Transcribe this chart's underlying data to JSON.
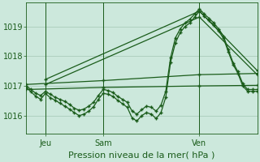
{
  "background_color": "#cce8dc",
  "grid_color": "#aaccbb",
  "line_color": "#1a5c1a",
  "xlabel": "Pression niveau de la mer( hPa )",
  "xlabel_fontsize": 8,
  "ylim": [
    1015.4,
    1019.8
  ],
  "yticks": [
    1016,
    1017,
    1018,
    1019
  ],
  "ytick_fontsize": 7,
  "xtick_labels": [
    "Jeu",
    "Sam",
    "Ven"
  ],
  "xtick_positions": [
    8,
    32,
    72
  ],
  "xlim": [
    0,
    96
  ],
  "series": [
    {
      "x": [
        0,
        2,
        4,
        6,
        8,
        10,
        12,
        14,
        16,
        18,
        20,
        22,
        24,
        26,
        28,
        30,
        32,
        34,
        36,
        38,
        40,
        42,
        44,
        46,
        48,
        50,
        52,
        54,
        56,
        58,
        60,
        62,
        64,
        66,
        68,
        70,
        72,
        74,
        76,
        78,
        80,
        82,
        84,
        86,
        88,
        90,
        92,
        94,
        96
      ],
      "y": [
        1016.95,
        1016.8,
        1016.65,
        1016.55,
        1016.75,
        1016.6,
        1016.52,
        1016.42,
        1016.32,
        1016.22,
        1016.1,
        1016.0,
        1016.05,
        1016.15,
        1016.3,
        1016.55,
        1016.75,
        1016.72,
        1016.65,
        1016.52,
        1016.4,
        1016.28,
        1015.92,
        1015.82,
        1016.0,
        1016.1,
        1016.05,
        1015.9,
        1016.1,
        1016.62,
        1017.8,
        1018.45,
        1018.8,
        1019.0,
        1019.12,
        1019.32,
        1019.52,
        1019.35,
        1019.2,
        1019.05,
        1018.85,
        1018.6,
        1018.15,
        1017.72,
        1017.42,
        1017.0,
        1016.82,
        1016.82,
        1016.82
      ]
    },
    {
      "x": [
        0,
        2,
        4,
        6,
        8,
        10,
        12,
        14,
        16,
        18,
        20,
        22,
        24,
        26,
        28,
        30,
        32,
        34,
        36,
        38,
        40,
        42,
        44,
        46,
        48,
        50,
        52,
        54,
        56,
        58,
        60,
        62,
        64,
        66,
        68,
        70,
        72,
        74,
        76,
        78,
        80,
        82,
        84,
        86,
        88,
        90,
        92,
        94,
        96
      ],
      "y": [
        1017.0,
        1016.88,
        1016.75,
        1016.68,
        1016.82,
        1016.72,
        1016.62,
        1016.55,
        1016.48,
        1016.38,
        1016.25,
        1016.18,
        1016.22,
        1016.32,
        1016.45,
        1016.68,
        1016.88,
        1016.85,
        1016.78,
        1016.65,
        1016.55,
        1016.45,
        1016.15,
        1016.05,
        1016.2,
        1016.32,
        1016.28,
        1016.15,
        1016.35,
        1016.82,
        1017.95,
        1018.62,
        1018.92,
        1019.12,
        1019.25,
        1019.42,
        1019.6,
        1019.42,
        1019.28,
        1019.12,
        1018.92,
        1018.68,
        1018.22,
        1017.78,
        1017.48,
        1017.08,
        1016.88,
        1016.88,
        1016.88
      ]
    },
    {
      "x": [
        0,
        32,
        72,
        96
      ],
      "y": [
        1017.05,
        1017.18,
        1017.38,
        1017.42
      ]
    },
    {
      "x": [
        0,
        32,
        72,
        96
      ],
      "y": [
        1016.88,
        1016.95,
        1017.0,
        1017.02
      ]
    },
    {
      "x": [
        8,
        72,
        96
      ],
      "y": [
        1017.22,
        1019.52,
        1017.52
      ]
    },
    {
      "x": [
        8,
        72,
        96
      ],
      "y": [
        1017.05,
        1019.32,
        1017.38
      ]
    }
  ]
}
